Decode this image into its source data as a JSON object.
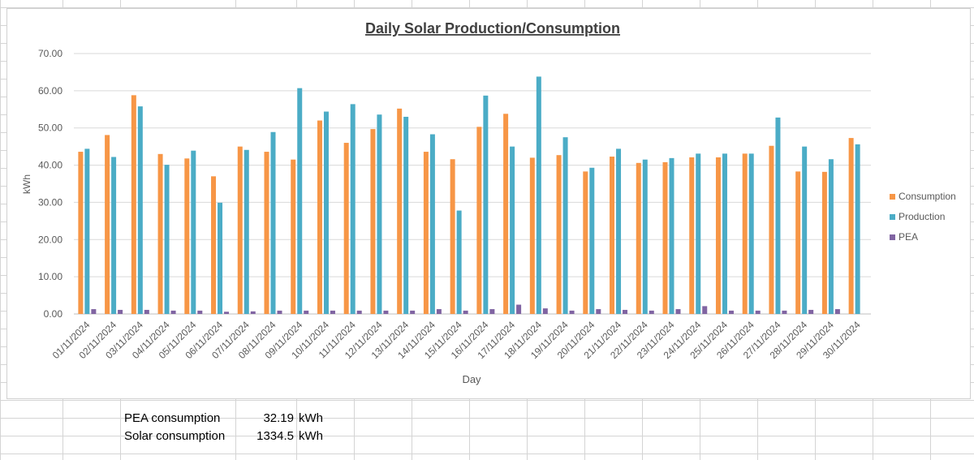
{
  "chart_data": {
    "type": "bar",
    "title": "Daily Solar Production/Consumption",
    "xlabel": "Day",
    "ylabel": "kWh",
    "ylim": [
      0,
      70
    ],
    "yticks": [
      "0.00",
      "10.00",
      "20.00",
      "30.00",
      "40.00",
      "50.00",
      "60.00",
      "70.00"
    ],
    "grid": true,
    "legend_position": "right",
    "categories": [
      "01/11/2024",
      "02/11/2024",
      "03/11/2024",
      "04/11/2024",
      "05/11/2024",
      "06/11/2024",
      "07/11/2024",
      "08/11/2024",
      "09/11/2024",
      "10/11/2024",
      "11/11/2024",
      "12/11/2024",
      "13/11/2024",
      "14/11/2024",
      "15/11/2024",
      "16/11/2024",
      "17/11/2024",
      "18/11/2024",
      "19/11/2024",
      "20/11/2024",
      "21/11/2024",
      "22/11/2024",
      "23/11/2024",
      "24/11/2024",
      "25/11/2024",
      "26/11/2024",
      "27/11/2024",
      "28/11/2024",
      "29/11/2024",
      "30/11/2024"
    ],
    "series": [
      {
        "name": "Consumption",
        "color": "#f79646",
        "values": [
          43.6,
          48.1,
          58.8,
          43.0,
          41.8,
          37.0,
          45.0,
          43.6,
          41.5,
          52.0,
          46.0,
          49.7,
          55.2,
          43.6,
          41.6,
          50.3,
          53.8,
          42.0,
          42.7,
          38.3,
          42.3,
          40.6,
          40.8,
          42.1,
          42.1,
          43.1,
          45.2,
          38.3,
          38.2,
          47.3
        ]
      },
      {
        "name": "Production",
        "color": "#4bacc6",
        "values": [
          44.4,
          42.2,
          55.8,
          40.1,
          43.9,
          29.9,
          44.1,
          48.9,
          60.7,
          54.4,
          56.4,
          53.6,
          53.0,
          48.3,
          27.8,
          58.7,
          45.0,
          63.8,
          47.5,
          39.3,
          44.4,
          41.5,
          41.9,
          43.1,
          43.1,
          43.1,
          52.8,
          45.0,
          41.6,
          45.6
        ]
      },
      {
        "name": "PEA",
        "color": "#8064a2",
        "values": [
          1.3,
          1.1,
          1.1,
          0.9,
          0.9,
          0.6,
          0.7,
          0.9,
          0.9,
          0.9,
          0.9,
          0.9,
          0.9,
          1.3,
          0.9,
          1.3,
          2.5,
          1.5,
          0.9,
          1.3,
          1.1,
          0.9,
          1.3,
          2.1,
          0.9,
          0.9,
          0.9,
          1.1,
          1.3,
          0.0
        ]
      }
    ]
  },
  "summary": {
    "pea_label": "PEA consumption",
    "pea_value": "32.19",
    "pea_unit": "kWh",
    "solar_label": "Solar consumption",
    "solar_value": "1334.5",
    "solar_unit": "kWh"
  },
  "colors": {
    "gridline": "#d9d9d9",
    "cellborder": "#d4d4d4",
    "axis_text": "#595959"
  }
}
